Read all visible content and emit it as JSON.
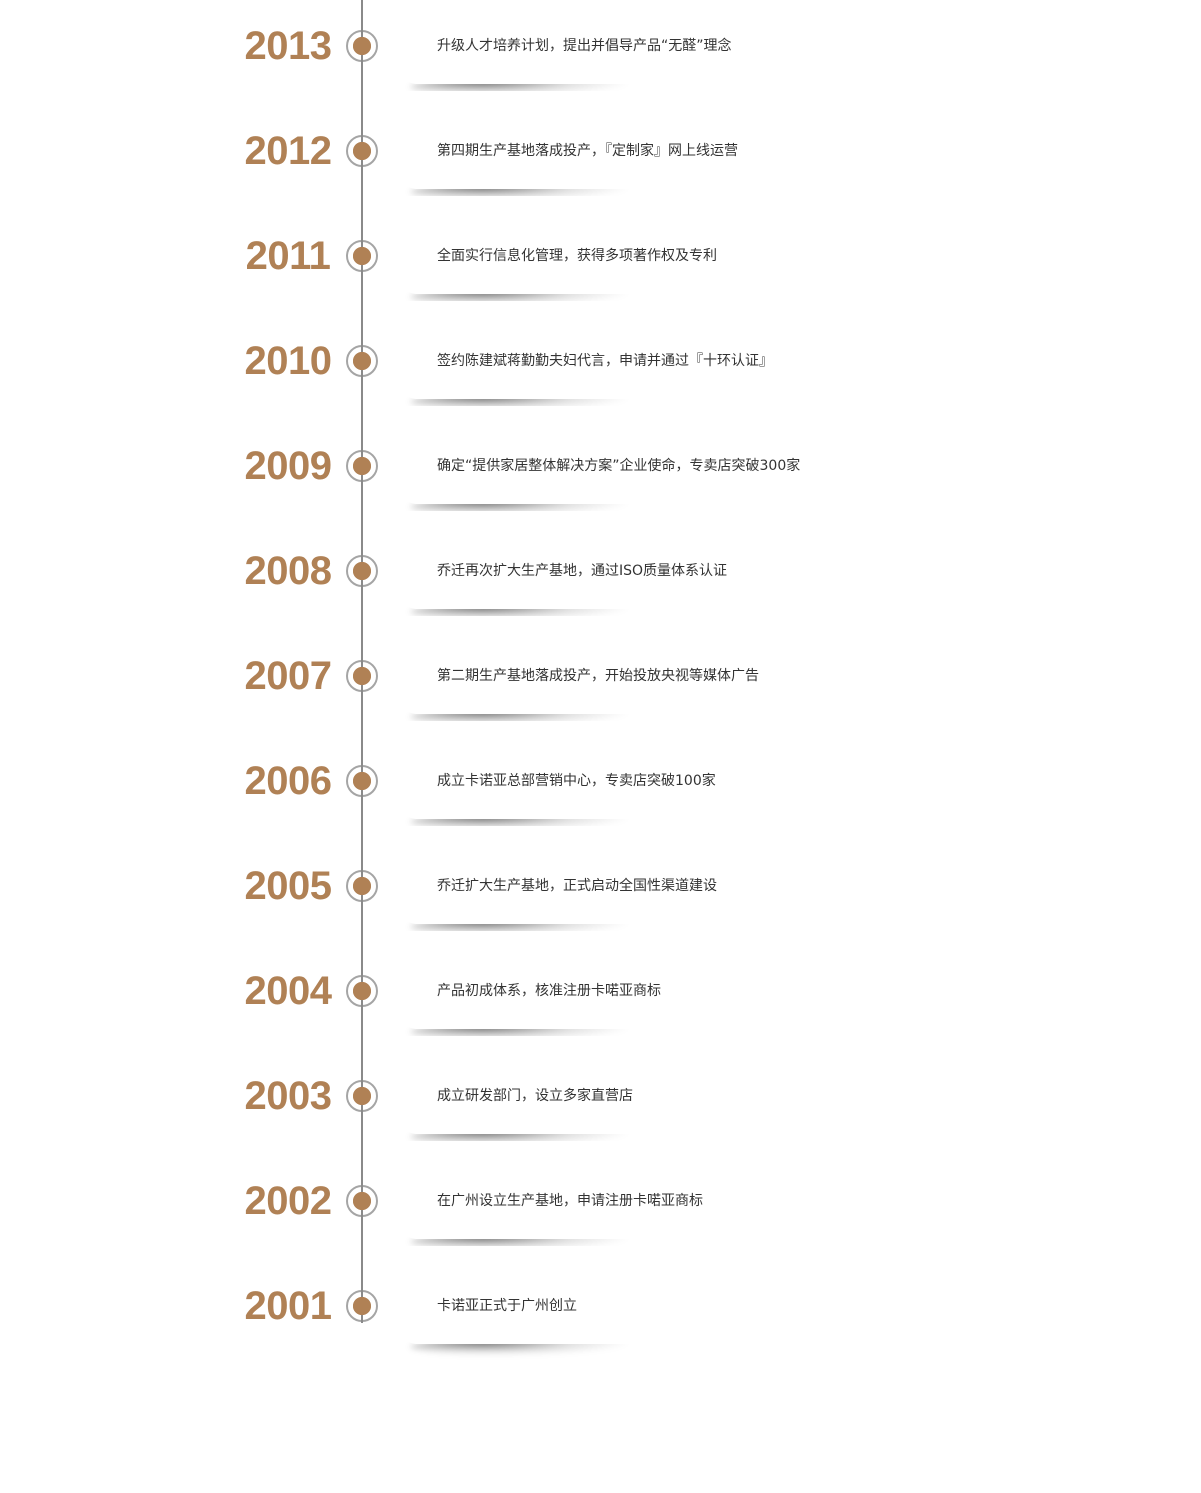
{
  "accent_color": "#b08155",
  "timeline": [
    {
      "year": "2013",
      "text": "升级人才培养计划，提出并倡导产品“无醛”理念"
    },
    {
      "year": "2012",
      "text": "第四期生产基地落成投产，『定制家』网上线运营"
    },
    {
      "year": "2011",
      "text": "全面实行信息化管理，获得多项著作权及专利"
    },
    {
      "year": "2010",
      "text": "签约陈建斌蒋勤勤夫妇代言，申请并通过『十环认证』"
    },
    {
      "year": "2009",
      "text": "确定“提供家居整体解决方案”企业使命，专卖店突破300家"
    },
    {
      "year": "2008",
      "text": "乔迁再次扩大生产基地，通过ISO质量体系认证"
    },
    {
      "year": "2007",
      "text": "第二期生产基地落成投产，开始投放央视等媒体广告"
    },
    {
      "year": "2006",
      "text": "成立卡诺亚总部营销中心，专卖店突破100家"
    },
    {
      "year": "2005",
      "text": "乔迁扩大生产基地，正式启动全国性渠道建设"
    },
    {
      "year": "2004",
      "text": "产品初成体系，核准注册卡喏亚商标"
    },
    {
      "year": "2003",
      "text": "成立研发部门，设立多家直营店"
    },
    {
      "year": "2002",
      "text": "在广州设立生产基地，申请注册卡喏亚商标"
    },
    {
      "year": "2001",
      "text": "卡诺亚正式于广州创立"
    }
  ]
}
